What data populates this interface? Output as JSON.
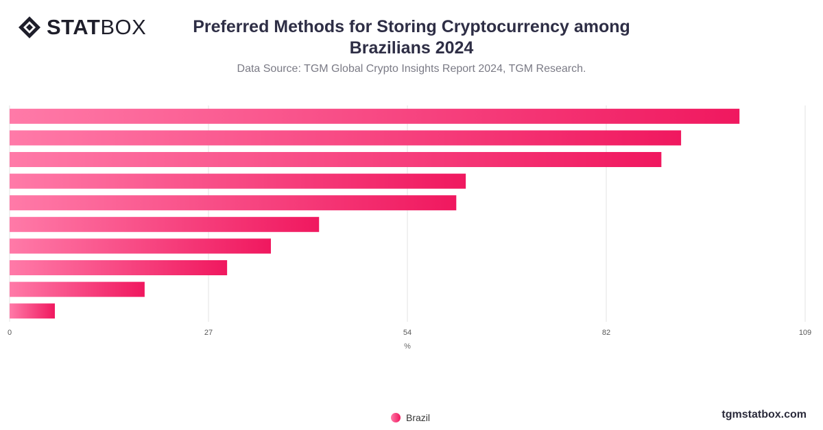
{
  "brand": {
    "logo_bold": "STAT",
    "logo_light": "BOX",
    "website": "tgmstatbox.com"
  },
  "header": {
    "title": "Preferred Methods for Storing Cryptocurrency among Brazilians 2024",
    "subtitle": "Data Source: TGM Global Crypto Insights Report 2024, TGM Research."
  },
  "colors": {
    "bar_start": "#ff7aa8",
    "bar_end": "#f0185f",
    "grid": "#e3e3e3"
  },
  "chart_data": {
    "type": "bar",
    "orientation": "horizontal",
    "categories": [
      "",
      "",
      "",
      "",
      "",
      "",
      "",
      "",
      "",
      ""
    ],
    "series": [
      {
        "name": "Brazil",
        "values": [
          100,
          92,
          89.3,
          62.5,
          61.2,
          42.4,
          35.8,
          29.8,
          18.5,
          6.2
        ]
      }
    ],
    "xlabel": "%",
    "ylabel": "",
    "xlim": [
      0,
      109
    ],
    "xticks": [
      "0",
      "27",
      "54",
      "82",
      "109"
    ],
    "grid": true,
    "legend_position": "bottom-center"
  }
}
